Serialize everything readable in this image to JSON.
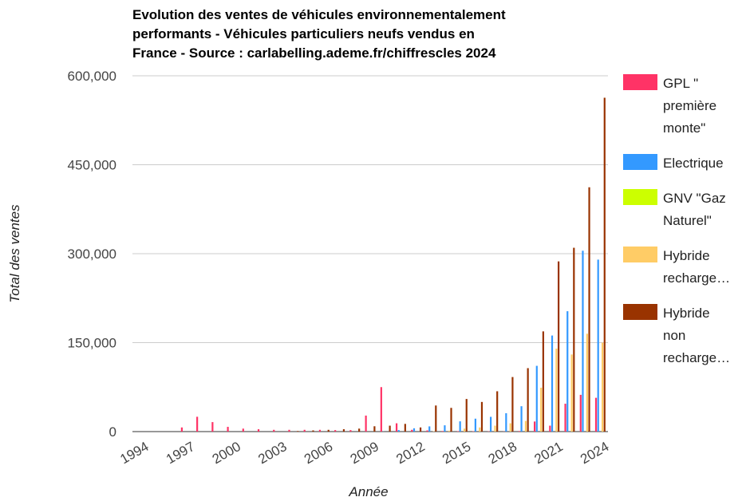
{
  "chart_data": {
    "type": "bar",
    "title": "Evolution des ventes de véhicules environnementalement performants - Véhicules particuliers neufs vendus en France - Source : carlabelling.ademe.fr/chiffrescles 2024",
    "xlabel": "Année",
    "ylabel": "Total des ventes",
    "x": [
      1994,
      1995,
      1996,
      1997,
      1998,
      1999,
      2000,
      2001,
      2002,
      2003,
      2004,
      2005,
      2006,
      2007,
      2008,
      2009,
      2010,
      2011,
      2012,
      2013,
      2014,
      2015,
      2016,
      2017,
      2018,
      2019,
      2020,
      2021,
      2022,
      2023,
      2024
    ],
    "xlim": [
      1993.5,
      2024.5
    ],
    "xticks": [
      1994,
      1997,
      2000,
      2003,
      2006,
      2009,
      2012,
      2015,
      2018,
      2021,
      2024
    ],
    "ylim": [
      0,
      600000
    ],
    "yticks": [
      0,
      {
        "value": 150000,
        "label": "150,000"
      },
      {
        "value": 300000,
        "label": "300,000"
      },
      {
        "value": 450000,
        "label": "450,000"
      },
      {
        "value": 600000,
        "label": "600,000"
      }
    ],
    "grid": true,
    "legend": "right",
    "series": [
      {
        "name": "GPL \" première monte\"",
        "color": "#ff3366",
        "values": [
          0,
          0,
          0,
          7000,
          25000,
          16000,
          8000,
          5000,
          4000,
          3000,
          3000,
          3000,
          3000,
          2500,
          2500,
          27000,
          75000,
          14000,
          3000,
          2000,
          1000,
          800,
          600,
          500,
          300,
          1000,
          17000,
          10000,
          47000,
          62000,
          57000
        ]
      },
      {
        "name": "Electrique",
        "color": "#3399ff",
        "values": [
          0,
          0,
          0,
          0,
          0,
          0,
          0,
          0,
          0,
          0,
          0,
          0,
          0,
          0,
          0,
          0,
          200,
          2600,
          5600,
          8800,
          10600,
          17300,
          21800,
          24900,
          31000,
          42800,
          110900,
          162000,
          203000,
          305000,
          290000
        ]
      },
      {
        "name": "GNV \"Gaz Naturel\"",
        "color": "#ccff00",
        "values": [
          0,
          0,
          0,
          0,
          0,
          0,
          0,
          0,
          0,
          0,
          0,
          0,
          0,
          0,
          0,
          0,
          0,
          0,
          0,
          0,
          0,
          0,
          0,
          0,
          0,
          0,
          0,
          0,
          0,
          0,
          0
        ]
      },
      {
        "name": "Hybride recharge…",
        "color": "#ffcc66",
        "values": [
          0,
          0,
          0,
          0,
          0,
          0,
          0,
          0,
          0,
          0,
          0,
          0,
          0,
          0,
          0,
          0,
          0,
          0,
          0,
          600,
          1500,
          5000,
          7000,
          10000,
          14000,
          18000,
          74000,
          140000,
          130000,
          165000,
          150000
        ]
      },
      {
        "name": "Hybride non recharge…",
        "color": "#993300",
        "values": [
          0,
          0,
          0,
          0,
          0,
          0,
          0,
          0,
          0,
          0,
          1000,
          2000,
          3000,
          4000,
          5000,
          9000,
          10000,
          13000,
          7000,
          44000,
          40000,
          55000,
          50000,
          68000,
          92000,
          107000,
          169000,
          287000,
          310000,
          412000,
          563000
        ]
      }
    ]
  }
}
